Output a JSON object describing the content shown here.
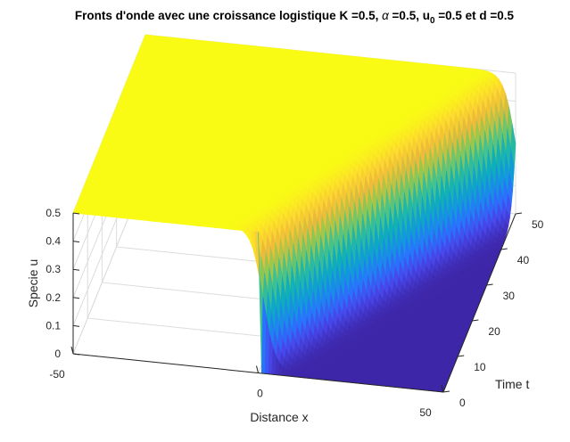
{
  "chart_data": {
    "type": "surface",
    "title": {
      "prefix": "Fronts d'onde avec une croissance logistique K =0.5, ",
      "alpha_symbol": "α",
      "middle": " =0.5, u",
      "subscript": "0",
      "suffix": " =0.5 et d =0.5"
    },
    "xlabel": "Distance x",
    "ylabel": "Time t",
    "zlabel": "Specie u",
    "x_ticks": [
      "-50",
      "0",
      "50"
    ],
    "y_ticks": [
      "0",
      "10",
      "20",
      "30",
      "40",
      "50"
    ],
    "z_ticks": [
      "0",
      "0.1",
      "0.2",
      "0.3",
      "0.4",
      "0.5"
    ],
    "xlim": [
      -50,
      50
    ],
    "ylim": [
      0,
      50
    ],
    "zlim": [
      0,
      0.5
    ],
    "grid": true,
    "colormap": "parula",
    "model": {
      "K": 0.5,
      "alpha": 0.5,
      "u0": 0.5,
      "d": 0.5,
      "initial_front_x": 0,
      "front_speed": 1
    }
  }
}
